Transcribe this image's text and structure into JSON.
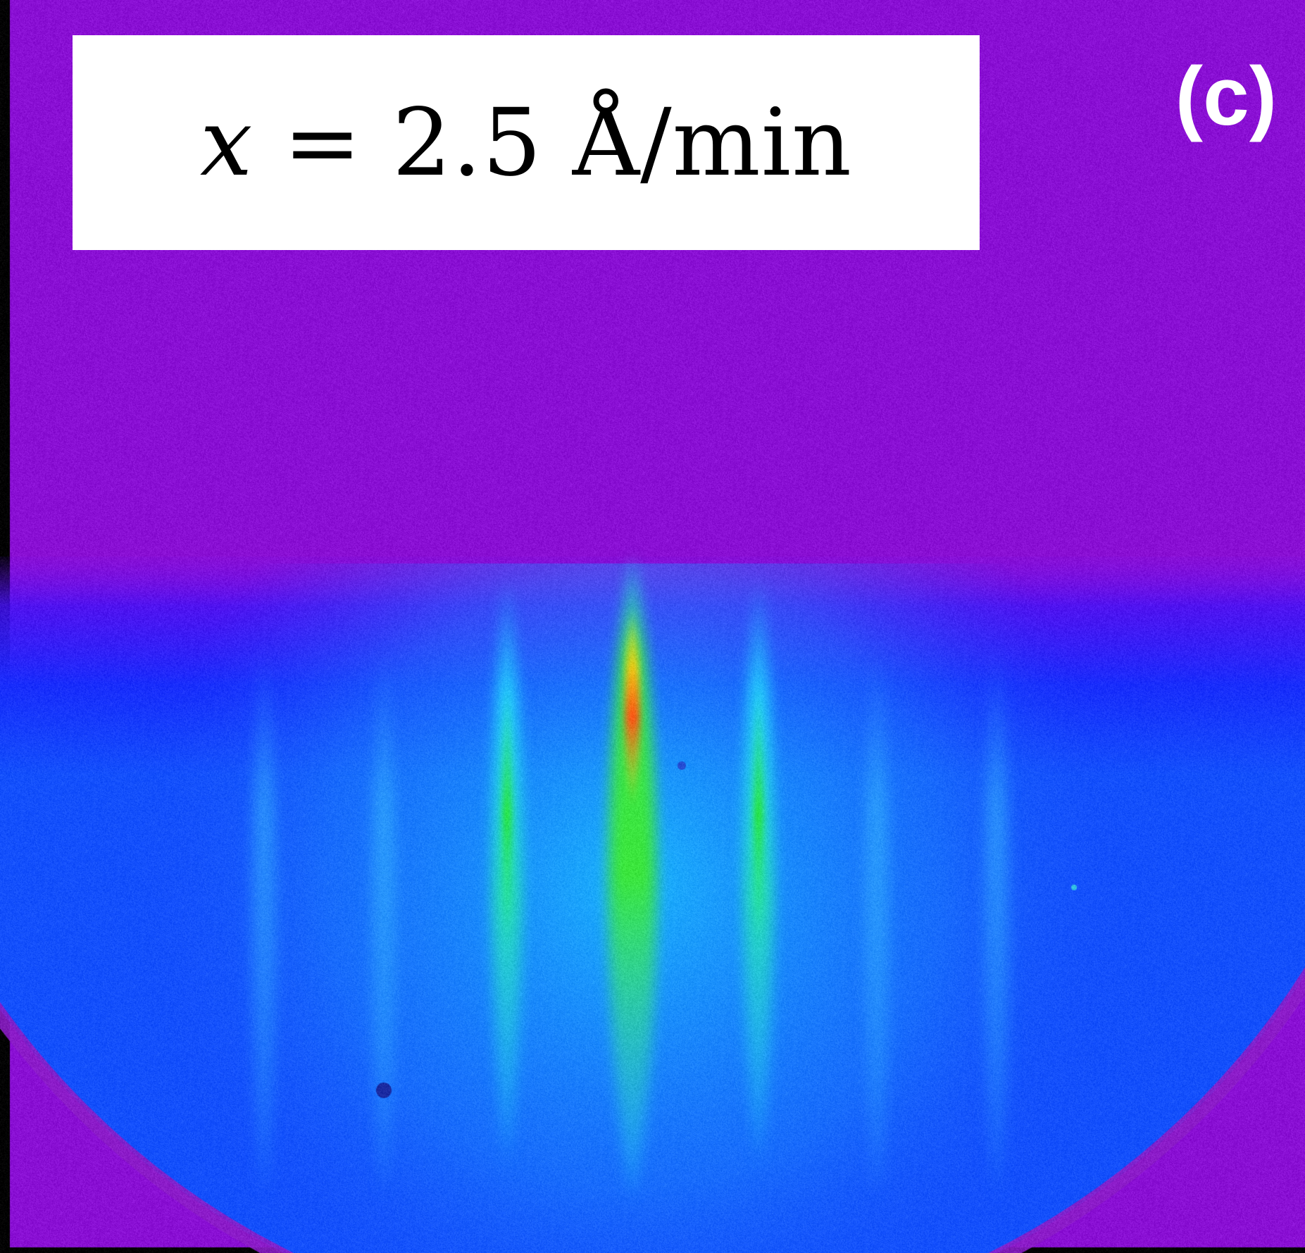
{
  "figure": {
    "panel_letter": "(c)",
    "rate_label": {
      "variable": "x",
      "equals": " = ",
      "value": "2.5 Å/min"
    },
    "colors": {
      "background_purple": "#8a10d4",
      "screen_blue": "#1a2cff",
      "streak_cyan": "#18d8ff",
      "streak_green": "#20e030",
      "streak_peak": "#ff4a10",
      "label_box": "#ffffff"
    },
    "pattern": "RHEED diffraction streaks on phosphor screen"
  }
}
